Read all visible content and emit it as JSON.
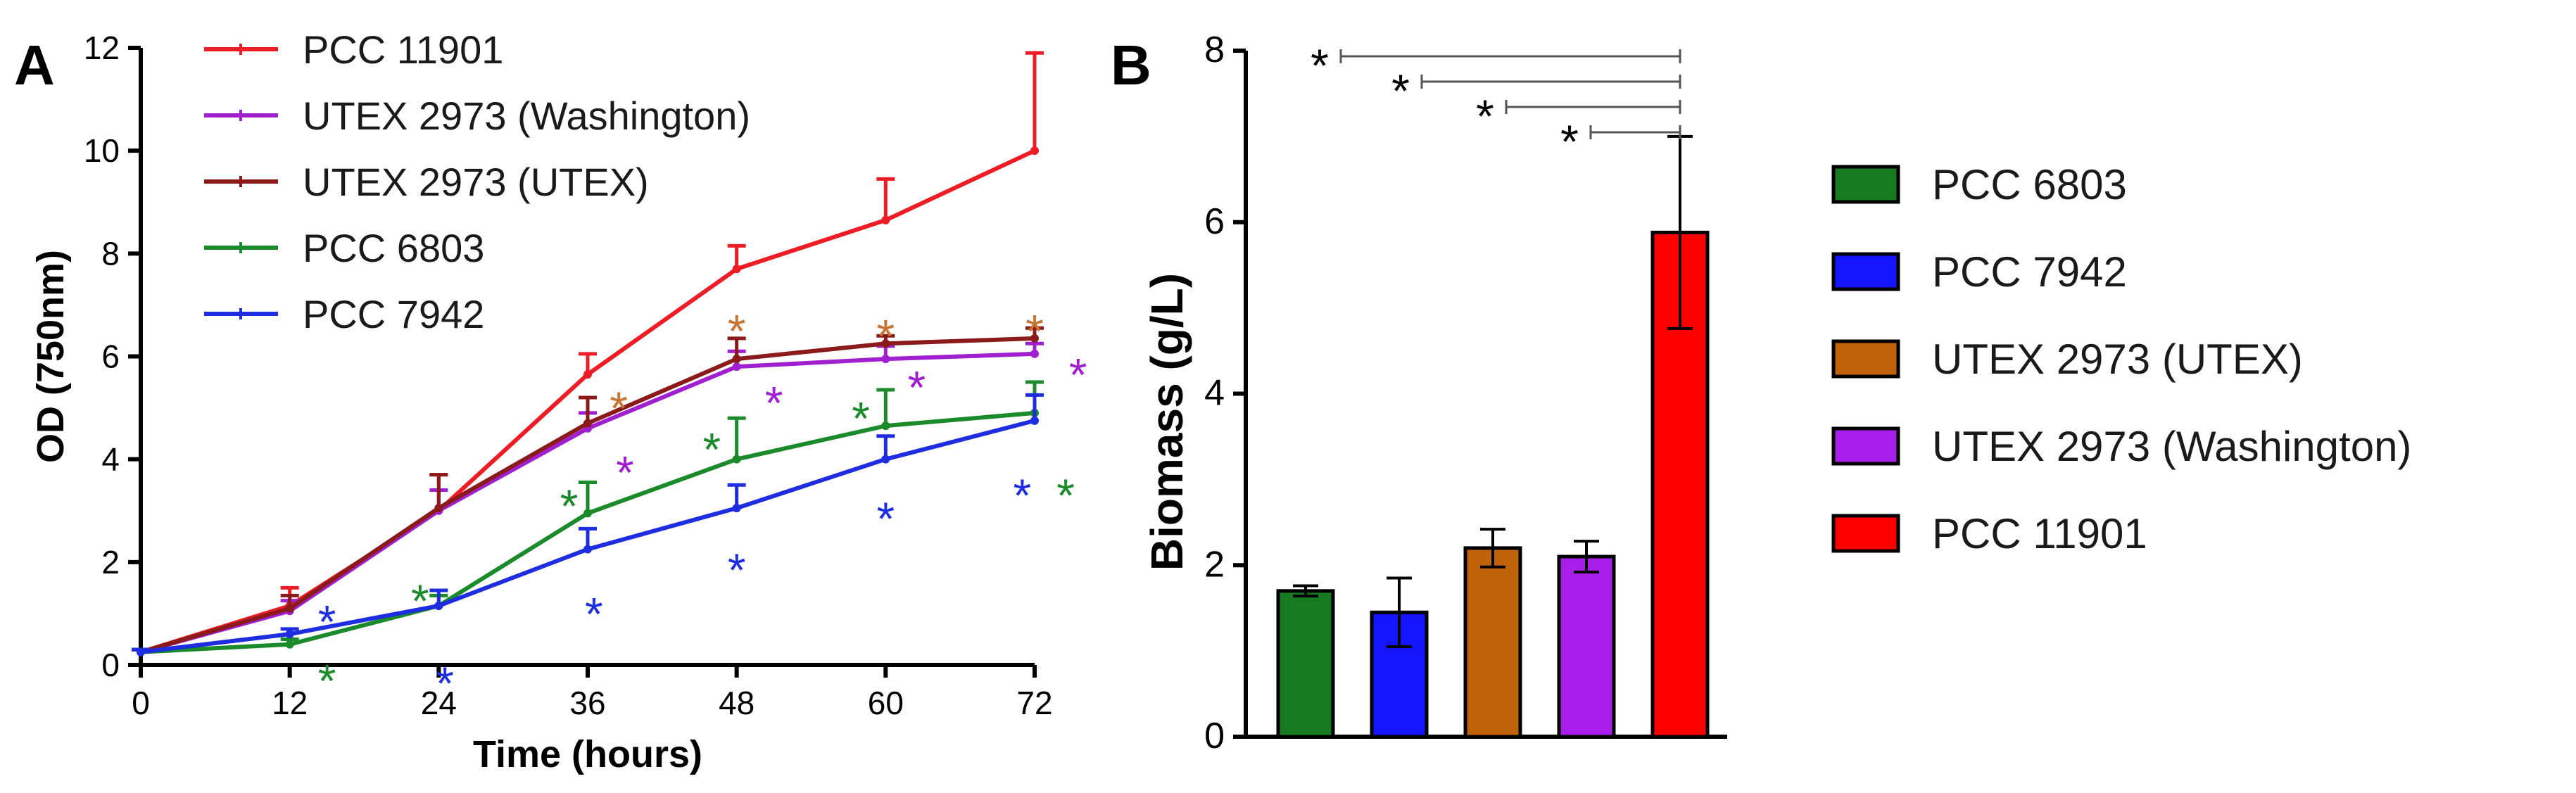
{
  "chart_data": [
    {
      "panel": "A",
      "type": "line",
      "xlabel": "Time (hours)",
      "ylabel": "OD (750nm)",
      "xlim": [
        0,
        72
      ],
      "ylim": [
        0,
        12
      ],
      "xticks": [
        0,
        12,
        24,
        36,
        48,
        60,
        72
      ],
      "yticks": [
        0,
        2,
        4,
        6,
        8,
        10,
        12
      ],
      "x": [
        0,
        12,
        24,
        36,
        48,
        60,
        72
      ],
      "series": [
        {
          "name": "PCC 11901",
          "color": "#ee1c25",
          "values": [
            0.25,
            1.15,
            3.0,
            5.65,
            7.7,
            8.65,
            10.0
          ],
          "errors": [
            0.05,
            0.35,
            0.7,
            0.4,
            0.45,
            0.8,
            1.9
          ]
        },
        {
          "name": "UTEX 2973 (Washington)",
          "color": "#a020d0",
          "values": [
            0.25,
            1.05,
            3.0,
            4.6,
            5.8,
            5.95,
            6.05
          ],
          "errors": [
            0.05,
            0.2,
            0.4,
            0.3,
            0.3,
            0.25,
            0.2
          ]
        },
        {
          "name": "UTEX 2973 (UTEX)",
          "color": "#8b1a1a",
          "values": [
            0.25,
            1.1,
            3.05,
            4.7,
            5.95,
            6.25,
            6.35
          ],
          "errors": [
            0.05,
            0.25,
            0.65,
            0.5,
            0.4,
            0.15,
            0.2
          ]
        },
        {
          "name": "PCC 6803",
          "color": "#1a8a2a",
          "values": [
            0.25,
            0.4,
            1.15,
            2.95,
            4.0,
            4.65,
            4.9
          ],
          "errors": [
            0.05,
            0.1,
            0.2,
            0.6,
            0.8,
            0.7,
            0.6
          ]
        },
        {
          "name": "PCC 7942",
          "color": "#1f2de0",
          "values": [
            0.25,
            0.6,
            1.15,
            2.25,
            3.05,
            4.0,
            4.75
          ],
          "errors": [
            0.05,
            0.1,
            0.3,
            0.4,
            0.45,
            0.45,
            0.5
          ]
        }
      ],
      "annotations": [
        {
          "text": "*",
          "color": "#1f2de0",
          "x": 15,
          "y": 1.05
        },
        {
          "text": "*",
          "color": "#1a8a2a",
          "x": 15,
          "y": -0.1
        },
        {
          "text": "*",
          "color": "#1a8a2a",
          "x": 22.5,
          "y": 1.45
        },
        {
          "text": "*",
          "color": "#1f2de0",
          "x": 24.5,
          "y": -0.15
        },
        {
          "text": "*",
          "color": "#1a8a2a",
          "x": 34.5,
          "y": 3.3
        },
        {
          "text": "*",
          "color": "#1f2de0",
          "x": 36.5,
          "y": 1.2
        },
        {
          "text": "*",
          "color": "#c87533",
          "x": 38.5,
          "y": 5.2
        },
        {
          "text": "*",
          "color": "#a020d0",
          "x": 39,
          "y": 3.95
        },
        {
          "text": "*",
          "color": "#c87533",
          "x": 48,
          "y": 6.7
        },
        {
          "text": "*",
          "color": "#1a8a2a",
          "x": 46,
          "y": 4.4
        },
        {
          "text": "*",
          "color": "#1f2de0",
          "x": 48,
          "y": 2.05
        },
        {
          "text": "*",
          "color": "#a020d0",
          "x": 51,
          "y": 5.3
        },
        {
          "text": "*",
          "color": "#c87533",
          "x": 60,
          "y": 6.6
        },
        {
          "text": "*",
          "color": "#1a8a2a",
          "x": 58,
          "y": 5.0
        },
        {
          "text": "*",
          "color": "#1f2de0",
          "x": 60,
          "y": 3.05
        },
        {
          "text": "*",
          "color": "#a020d0",
          "x": 62.5,
          "y": 5.6
        },
        {
          "text": "*",
          "color": "#c87533",
          "x": 72,
          "y": 6.7
        },
        {
          "text": "*",
          "color": "#a020d0",
          "x": 75.5,
          "y": 5.85
        },
        {
          "text": "*",
          "color": "#1f2de0",
          "x": 71,
          "y": 3.5
        },
        {
          "text": "*",
          "color": "#1a8a2a",
          "x": 74.5,
          "y": 3.5
        }
      ]
    },
    {
      "panel": "B",
      "type": "bar",
      "ylabel": "Biomass (g/L)",
      "xlabel": "",
      "ylim": [
        0,
        8
      ],
      "yticks": [
        0,
        2,
        4,
        6,
        8
      ],
      "categories": [
        "PCC 6803",
        "PCC 7942",
        "UTEX 2973 (UTEX)",
        "UTEX 2973 (Washington)",
        "PCC 11901"
      ],
      "values": [
        1.7,
        1.45,
        2.2,
        2.1,
        5.88
      ],
      "errors": [
        0.06,
        0.4,
        0.22,
        0.18,
        1.12
      ],
      "colors": [
        "#167a1e",
        "#1414ff",
        "#c0620a",
        "#a61ee8",
        "#ff0000"
      ],
      "significance": [
        {
          "from": "PCC 6803",
          "to": "PCC 11901",
          "label": "*"
        },
        {
          "from": "PCC 7942",
          "to": "PCC 11901",
          "label": "*"
        },
        {
          "from": "UTEX 2973 (UTEX)",
          "to": "PCC 11901",
          "label": "*"
        },
        {
          "from": "UTEX 2973 (Washington)",
          "to": "PCC 11901",
          "label": "*"
        }
      ]
    }
  ]
}
